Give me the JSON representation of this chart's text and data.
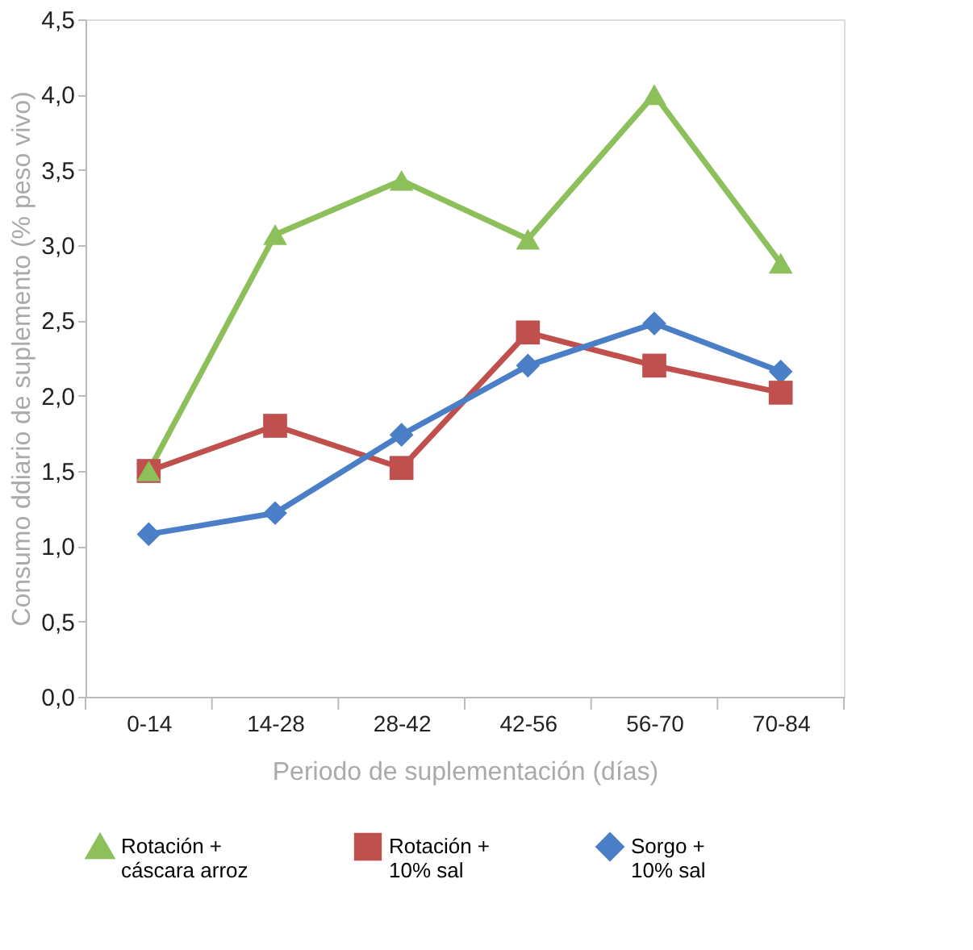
{
  "chart_data": {
    "type": "line",
    "xlabel": "Periodo de suplementación (días)",
    "ylabel": "Consumo ddiario de suplemento (% peso vivo)",
    "categories": [
      "0-14",
      "14-28",
      "28-42",
      "42-56",
      "56-70",
      "70-84"
    ],
    "series": [
      {
        "name": "Rotación +\ncáscara arroz",
        "color": "#8dbf5a",
        "marker": "triangle",
        "values": [
          1.5,
          3.07,
          3.43,
          3.04,
          4.0,
          2.88
        ]
      },
      {
        "name": "Rotación +\n10% sal",
        "color": "#c0504d",
        "marker": "square",
        "values": [
          1.5,
          1.8,
          1.52,
          2.42,
          2.2,
          2.02
        ]
      },
      {
        "name": "Sorgo +\n10% sal",
        "color": "#4a7ec7",
        "marker": "diamond",
        "values": [
          1.08,
          1.22,
          1.74,
          2.2,
          2.48,
          2.16
        ]
      }
    ],
    "ylim": [
      0,
      4.5
    ],
    "yticks": [
      {
        "value": 0,
        "label": "0,0"
      },
      {
        "value": 0.5,
        "label": "0,5"
      },
      {
        "value": 1,
        "label": "1,0"
      },
      {
        "value": 1.5,
        "label": "1,5"
      },
      {
        "value": 2,
        "label": "2,0"
      },
      {
        "value": 2.5,
        "label": "2,5"
      },
      {
        "value": 3,
        "label": "3,0"
      },
      {
        "value": 3.5,
        "label": "3,5"
      },
      {
        "value": 4,
        "label": "4,0"
      },
      {
        "value": 4.5,
        "label": "4,5"
      }
    ],
    "grid": false,
    "legend": "bottom",
    "line_style": "solid"
  }
}
